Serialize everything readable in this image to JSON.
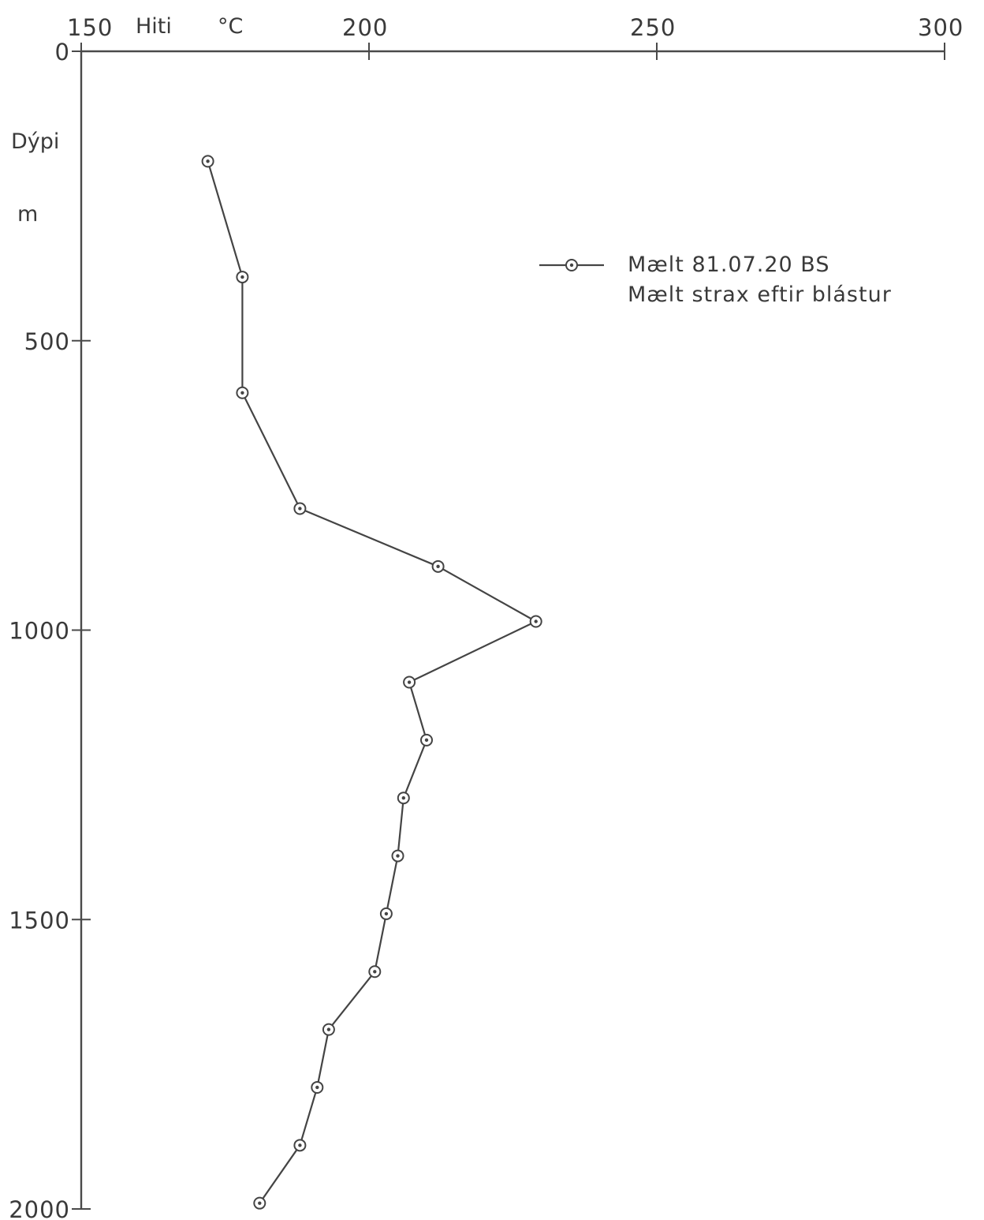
{
  "chart_data": {
    "type": "line",
    "x_label": "Hiti",
    "x_unit": "°C",
    "y_label": "Dýpi",
    "y_unit": "m",
    "xlim": [
      150,
      300
    ],
    "ylim": [
      0,
      2000
    ],
    "x_ticks": [
      150,
      200,
      250,
      300
    ],
    "y_ticks": [
      0,
      500,
      1000,
      1500,
      2000
    ],
    "x_tick_labels": [
      "150",
      "200",
      "250",
      "300"
    ],
    "y_tick_labels": [
      "0",
      "500",
      "1000",
      "1500",
      "2000"
    ],
    "x_axis_position": "top",
    "grid": false,
    "legend_position": "top-right",
    "legend": {
      "line1": "Mælt 81.07.20 BS",
      "line2": "Mælt strax eftir blástur"
    },
    "series": [
      {
        "marker": "circle-dot",
        "color": "#444444",
        "points": [
          {
            "depth": 190,
            "temp": 172
          },
          {
            "depth": 390,
            "temp": 178
          },
          {
            "depth": 590,
            "temp": 178
          },
          {
            "depth": 790,
            "temp": 188
          },
          {
            "depth": 890,
            "temp": 212
          },
          {
            "depth": 985,
            "temp": 229
          },
          {
            "depth": 1090,
            "temp": 207
          },
          {
            "depth": 1190,
            "temp": 210
          },
          {
            "depth": 1290,
            "temp": 206
          },
          {
            "depth": 1390,
            "temp": 205
          },
          {
            "depth": 1490,
            "temp": 203
          },
          {
            "depth": 1590,
            "temp": 201
          },
          {
            "depth": 1690,
            "temp": 193
          },
          {
            "depth": 1790,
            "temp": 191
          },
          {
            "depth": 1890,
            "temp": 188
          },
          {
            "depth": 1990,
            "temp": 181
          }
        ]
      }
    ]
  }
}
